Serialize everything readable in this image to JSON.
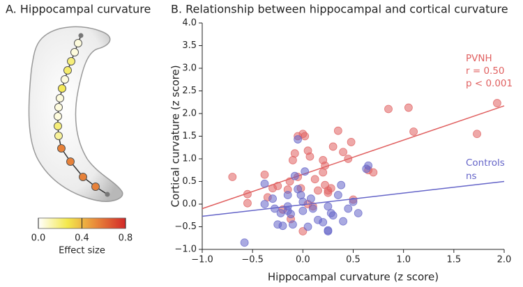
{
  "chart_data": [
    {
      "type": "colorstrip",
      "title": "A. Hippocampal curvature",
      "values": [
        0.05,
        0.05,
        0.2,
        0.22,
        0.05,
        0.25,
        0.05,
        0.05,
        0.05,
        0.2,
        0.15,
        0.55,
        0.55,
        0.55,
        0.55
      ],
      "clim": [
        0,
        0.8
      ],
      "colormap": [
        "#ffffff",
        "#f3e84c",
        "#e8873a",
        "#d22828"
      ],
      "cticks": [
        {
          "value": 0,
          "label": "0.0"
        },
        {
          "value": 0.4,
          "label": "0.4"
        },
        {
          "value": 0.8,
          "label": "0.8"
        }
      ],
      "clabel": "Effect size"
    },
    {
      "type": "scatter",
      "title": "B. Relationship between hippocampal and cortical curvature",
      "xlabel": "Hippocampal curvature (z score)",
      "ylabel": "Cortical curvature (z score)",
      "xlim": [
        -1,
        2
      ],
      "xticks": [
        {
          "value": -1,
          "label": "−1.0"
        },
        {
          "value": -0.5,
          "label": "−0.5"
        },
        {
          "value": 0,
          "label": "0.0"
        },
        {
          "value": 0.5,
          "label": "0.5"
        },
        {
          "value": 1,
          "label": "1.0"
        },
        {
          "value": 1.5,
          "label": "1.5"
        },
        {
          "value": 2,
          "label": "2.0"
        }
      ],
      "ylim": [
        -1,
        4
      ],
      "yticks": [
        {
          "value": -1,
          "label": "−1.0"
        },
        {
          "value": -0.5,
          "label": "−0.5"
        },
        {
          "value": 0,
          "label": "0.0"
        },
        {
          "value": 0.5,
          "label": "0.5"
        },
        {
          "value": 1,
          "label": "1.0"
        },
        {
          "value": 1.5,
          "label": "1.5"
        },
        {
          "value": 2,
          "label": "2.0"
        },
        {
          "value": 2.5,
          "label": "2.5"
        },
        {
          "value": 3,
          "label": "3.0"
        },
        {
          "value": 3.5,
          "label": "3.5"
        },
        {
          "value": 4,
          "label": "4.0"
        }
      ],
      "series": [
        {
          "name": "PVNH",
          "color": "#e06060",
          "stats": [
            "r = 0.50",
            "p < 0.001"
          ],
          "x": [
            -0.7,
            -0.55,
            -0.55,
            -0.38,
            -0.35,
            -0.25,
            -0.2,
            -0.15,
            -0.13,
            -0.1,
            -0.08,
            -0.05,
            0.0,
            0.02,
            0.05,
            0.07,
            -0.05,
            -0.02,
            0.05,
            0.1,
            0.12,
            0.2,
            0.22,
            0.2,
            0.25,
            0.28,
            0.3,
            0.35,
            0.4,
            0.45,
            0.48,
            0.5,
            0.65,
            0.7,
            0.85,
            1.05,
            1.1,
            1.73,
            1.93,
            -0.3,
            -0.12,
            0.0,
            0.22,
            0.15,
            0.25
          ],
          "values": [
            0.6,
            0.22,
            0.02,
            0.65,
            0.15,
            0.4,
            -0.12,
            0.32,
            0.5,
            0.97,
            1.12,
            1.5,
            1.55,
            1.5,
            1.18,
            1.05,
            0.6,
            0.35,
            0.0,
            -0.05,
            0.55,
            0.97,
            0.85,
            0.7,
            0.3,
            0.35,
            1.27,
            1.62,
            1.15,
            1.0,
            1.37,
            0.1,
            0.75,
            0.7,
            2.1,
            2.13,
            1.6,
            1.55,
            2.23,
            0.35,
            -0.33,
            -0.6,
            0.42,
            0.3,
            0.25
          ],
          "fit": {
            "x": [
              -1,
              2
            ],
            "y": [
              -0.1,
              2.17
            ]
          }
        },
        {
          "name": "Controls",
          "color": "#6464c8",
          "stats": [
            "ns"
          ],
          "x": [
            -0.58,
            -0.38,
            -0.38,
            -0.3,
            -0.28,
            -0.25,
            -0.22,
            -0.2,
            -0.15,
            -0.15,
            -0.12,
            -0.1,
            -0.08,
            -0.05,
            -0.05,
            -0.02,
            0.0,
            0.0,
            0.02,
            0.08,
            0.1,
            0.15,
            0.2,
            0.25,
            0.25,
            0.28,
            0.3,
            0.35,
            0.38,
            0.4,
            0.45,
            0.5,
            0.55,
            0.63,
            0.65,
            -0.15,
            0.05,
            0.25
          ],
          "values": [
            -0.85,
            0.45,
            0.0,
            0.12,
            -0.1,
            -0.45,
            -0.2,
            -0.48,
            0.2,
            -0.15,
            -0.22,
            -0.45,
            0.62,
            1.43,
            0.33,
            0.2,
            0.05,
            -0.15,
            0.72,
            0.12,
            -0.1,
            -0.35,
            -0.4,
            -0.05,
            -0.58,
            -0.2,
            -0.25,
            0.2,
            0.42,
            -0.38,
            -0.1,
            0.05,
            -0.2,
            0.78,
            0.85,
            -0.05,
            -0.5,
            -0.6
          ],
          "fit": {
            "x": [
              -1,
              2
            ],
            "y": [
              -0.27,
              0.5
            ]
          }
        }
      ]
    }
  ]
}
